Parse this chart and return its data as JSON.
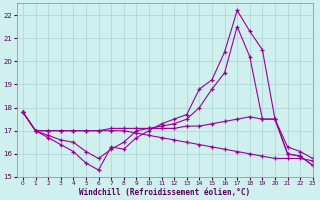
{
  "xlabel": "Windchill (Refroidissement éolien,°C)",
  "xlim": [
    -0.5,
    23
  ],
  "ylim": [
    15.0,
    22.5
  ],
  "yticks": [
    15,
    16,
    17,
    18,
    19,
    20,
    21,
    22
  ],
  "xticks": [
    0,
    1,
    2,
    3,
    4,
    5,
    6,
    7,
    8,
    9,
    10,
    11,
    12,
    13,
    14,
    15,
    16,
    17,
    18,
    19,
    20,
    21,
    22,
    23
  ],
  "bg_color": "#d0f0f0",
  "line_color": "#990099",
  "grid_color": "#b0d8d8",
  "line1_y": [
    17.8,
    17.0,
    16.7,
    16.4,
    16.1,
    15.6,
    15.3,
    16.3,
    16.2,
    16.7,
    17.0,
    17.3,
    17.5,
    17.7,
    18.8,
    19.2,
    20.4,
    22.2,
    21.3,
    20.5,
    17.5,
    16.0,
    15.9,
    15.5
  ],
  "line2_y": [
    17.8,
    17.0,
    16.8,
    16.6,
    16.5,
    16.1,
    15.8,
    16.2,
    16.5,
    17.0,
    17.1,
    17.2,
    17.3,
    17.5,
    18.0,
    18.8,
    19.5,
    21.5,
    20.2,
    17.5,
    17.5,
    16.0,
    15.9,
    15.5
  ],
  "line3_y": [
    17.8,
    17.0,
    17.0,
    17.0,
    17.0,
    17.0,
    17.0,
    17.1,
    17.1,
    17.1,
    17.1,
    17.1,
    17.1,
    17.2,
    17.2,
    17.3,
    17.4,
    17.5,
    17.6,
    17.5,
    17.5,
    16.3,
    16.1,
    15.8
  ],
  "line4_y": [
    17.8,
    17.0,
    17.0,
    17.0,
    17.0,
    17.0,
    17.0,
    17.0,
    17.0,
    16.9,
    16.8,
    16.7,
    16.6,
    16.5,
    16.4,
    16.3,
    16.2,
    16.1,
    16.0,
    15.9,
    15.8,
    15.8,
    15.8,
    15.7
  ]
}
